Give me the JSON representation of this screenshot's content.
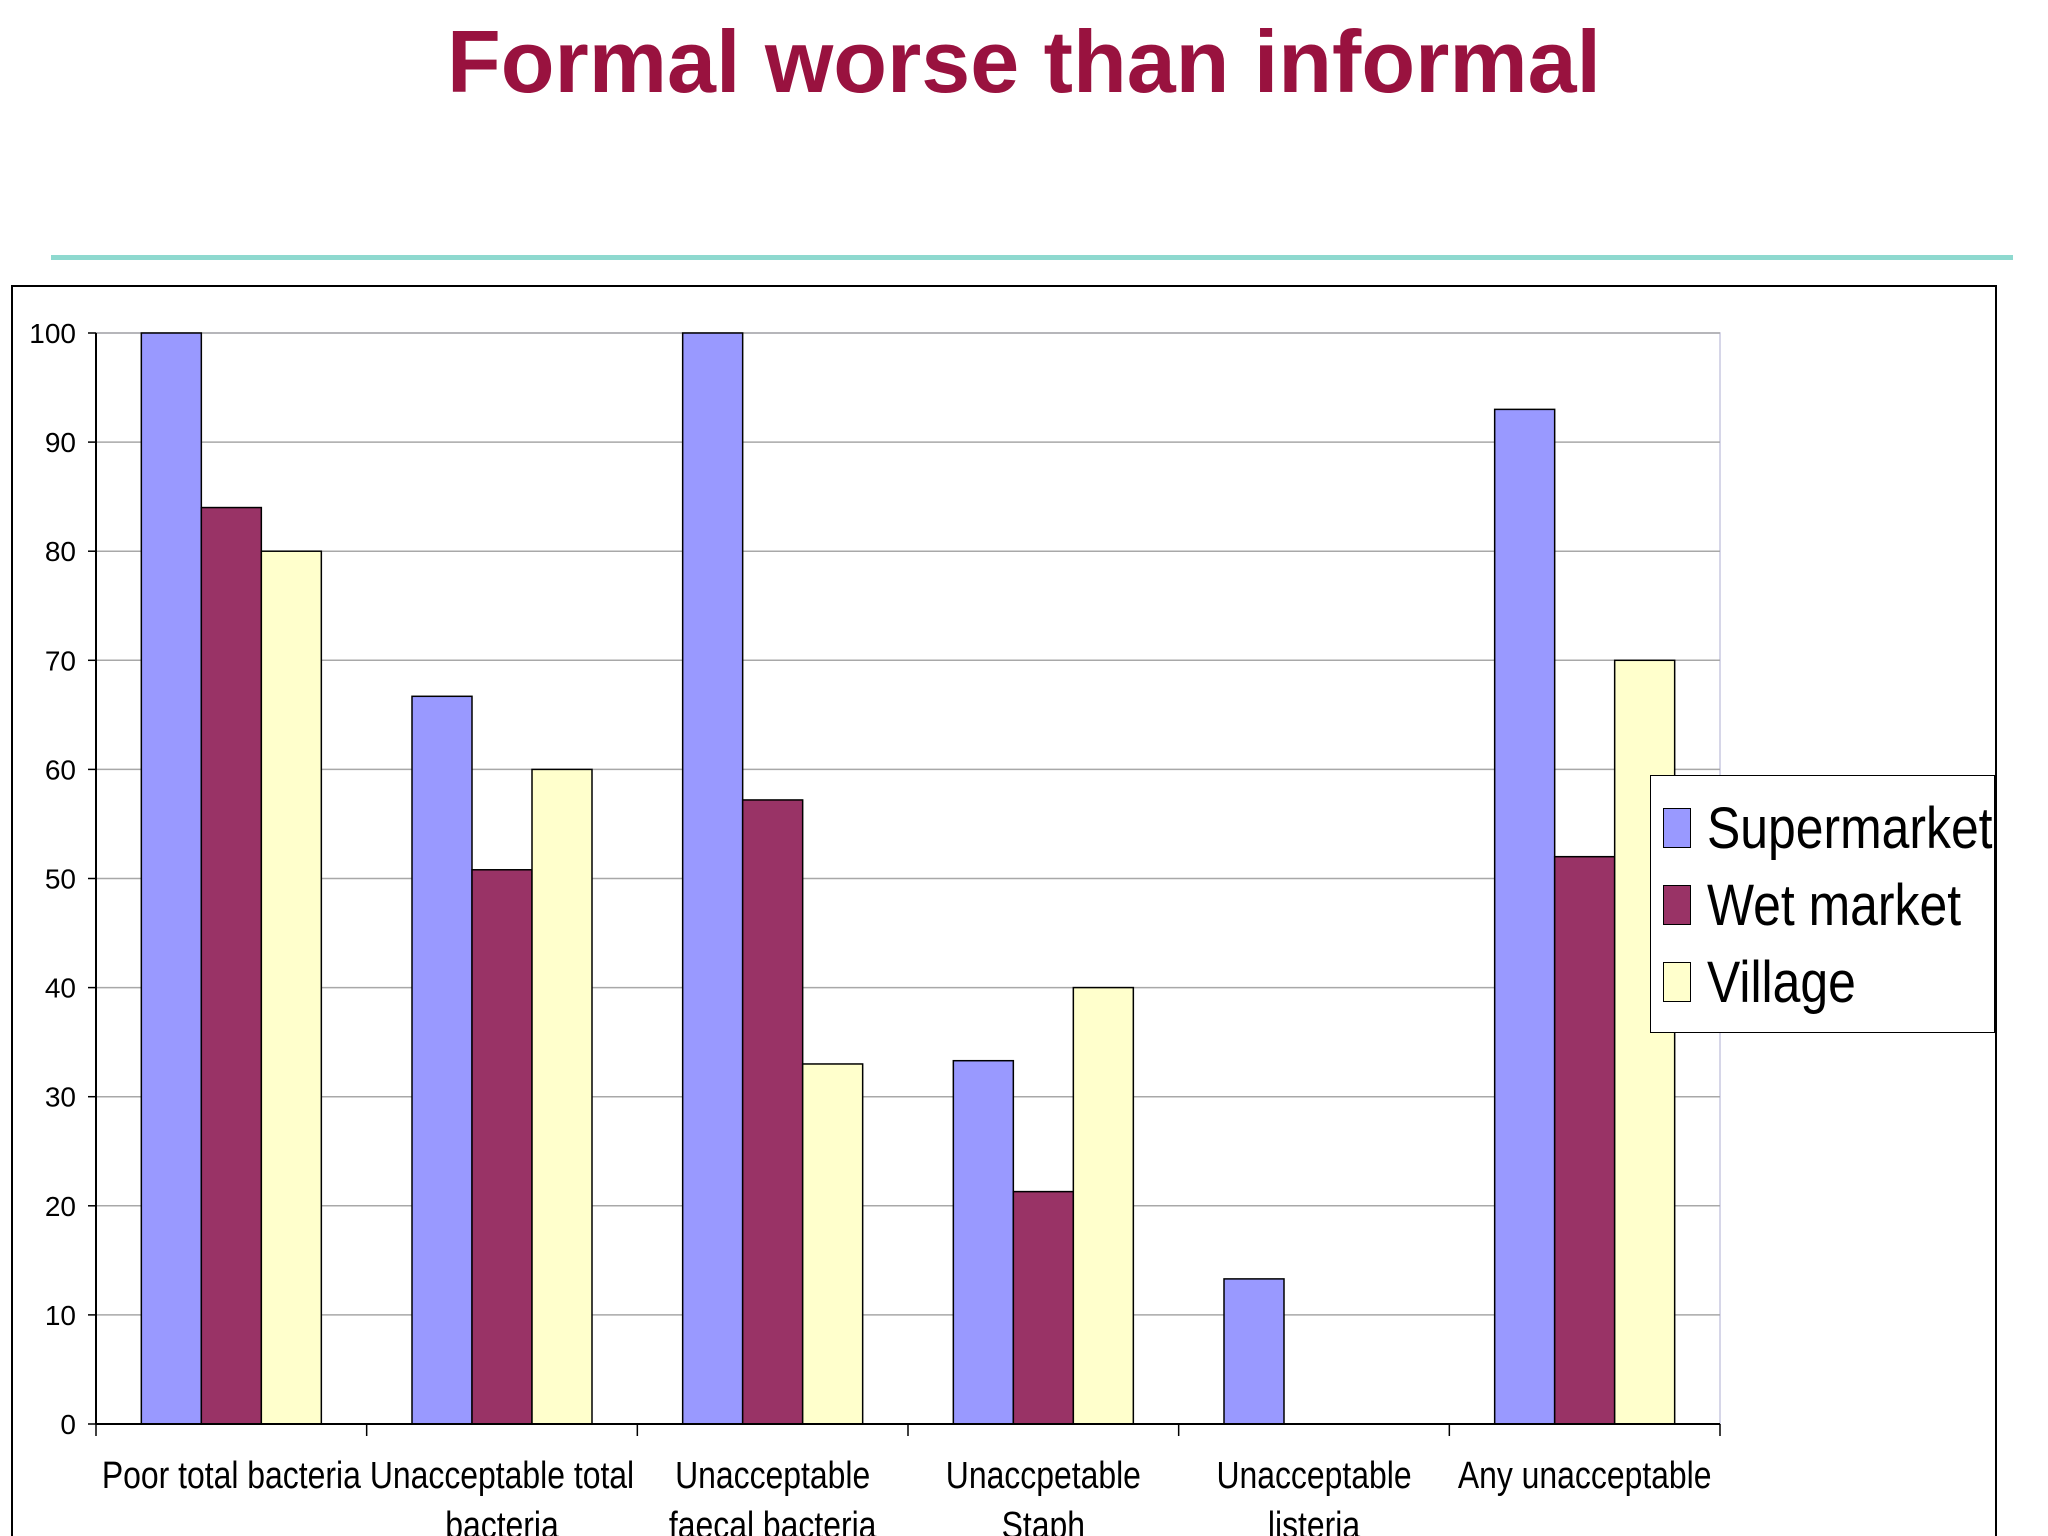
{
  "title": "Formal worse than informal",
  "chart_data": {
    "type": "bar",
    "categories": [
      [
        "Poor total bacteria"
      ],
      [
        "Unacceptable total",
        "bacteria"
      ],
      [
        "Unacceptable",
        "faecal bacteria"
      ],
      [
        "Unaccpetable",
        "Staph"
      ],
      [
        "Unacceptable",
        "listeria"
      ],
      [
        "Any unacceptable"
      ]
    ],
    "series": [
      {
        "name": "Supermarket",
        "color": "#9999ff",
        "values": [
          100,
          66.7,
          100,
          33.3,
          13.3,
          93
        ]
      },
      {
        "name": "Wet market",
        "color": "#993366",
        "values": [
          84,
          50.8,
          57.2,
          21.3,
          0,
          52
        ]
      },
      {
        "name": "Village",
        "color": "#ffffcc",
        "values": [
          80,
          60,
          33,
          40,
          0,
          70
        ]
      }
    ],
    "ylim": [
      0,
      100
    ],
    "yticks": [
      0,
      10,
      20,
      30,
      40,
      50,
      60,
      70,
      80,
      90,
      100
    ],
    "grid": true,
    "legend": "right",
    "xlabel": "",
    "ylabel": ""
  }
}
